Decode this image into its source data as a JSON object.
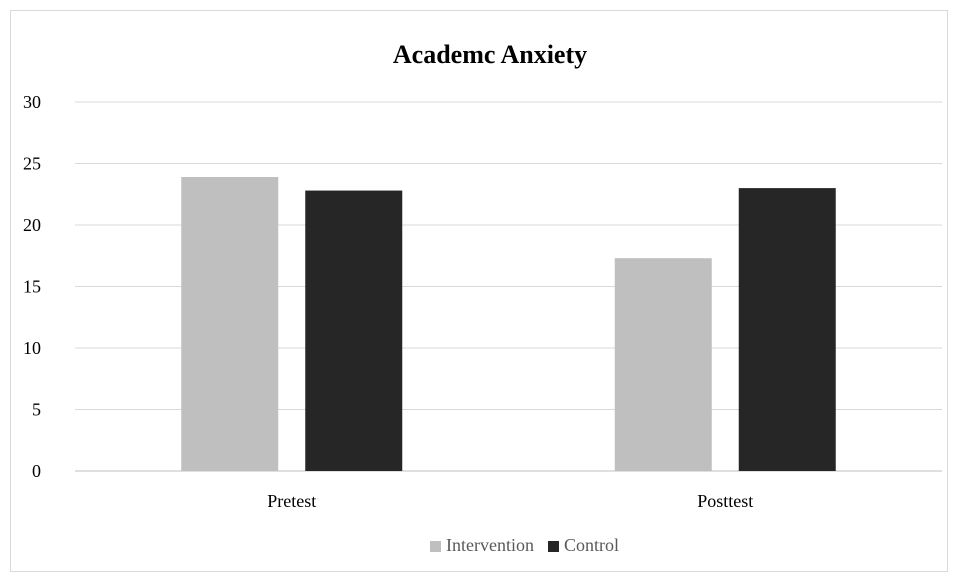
{
  "chart_data": {
    "type": "bar",
    "title": "Academc Anxiety",
    "categories": [
      "Pretest",
      "Posttest"
    ],
    "series": [
      {
        "name": "Intervention",
        "values": [
          23.9,
          17.3
        ],
        "color": "#bfbfbf"
      },
      {
        "name": "Control",
        "values": [
          22.8,
          23.0
        ],
        "color": "#262626"
      }
    ],
    "ylim": [
      0,
      30
    ],
    "yticks": [
      0,
      5,
      10,
      15,
      20,
      25,
      30
    ],
    "grid": true,
    "legend_position": "bottom"
  }
}
